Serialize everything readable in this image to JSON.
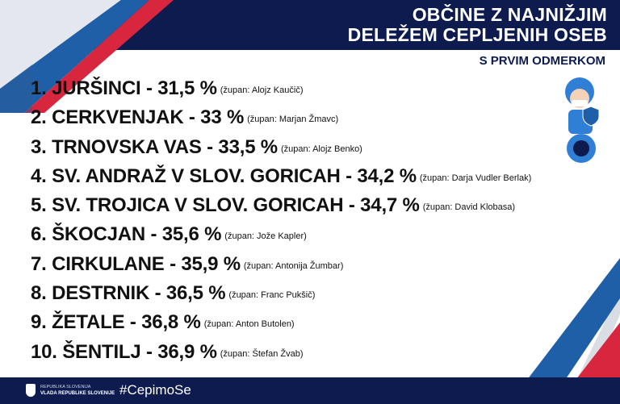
{
  "header": {
    "title_line1": "OBČINE Z NAJNIŽJIM",
    "title_line2": "DELEŽEM CEPLJENIH OSEB",
    "subtitle": "S PRVIM ODMERKOM"
  },
  "items": [
    {
      "main": "1. JURŠINCI - 31,5 %",
      "mayor": "(župan: Alojz Kaučič)"
    },
    {
      "main": "2. CERKVENJAK - 33 %",
      "mayor": "(župan: Marjan Žmavc)"
    },
    {
      "main": "3. TRNOVSKA VAS - 33,5 %",
      "mayor": "(župan: Alojz Benko)"
    },
    {
      "main": "4. SV. ANDRAŽ V SLOV. GORICAH - 34,2 %",
      "mayor": "(župan: Darja Vudler Berlak)"
    },
    {
      "main": "5. SV. TROJICA V SLOV. GORICAH - 34,7 %",
      "mayor": "(župan: David Klobasa)"
    },
    {
      "main": "6. ŠKOCJAN - 35,6 %",
      "mayor": "(župan: Jože Kapler)"
    },
    {
      "main": "7. CIRKULANE - 35,9 %",
      "mayor": "(župan:  Antonija Žumbar)"
    },
    {
      "main": "8. DESTRNIK - 36,5 %",
      "mayor": "(župan: Franc Pukšič)"
    },
    {
      "main": "9. ŽETALE - 36,8 %",
      "mayor": "(župan: Anton Butolen)"
    },
    {
      "main": "10. ŠENTILJ - 36,9 %",
      "mayor": "(župan: Štefan Žvab)"
    }
  ],
  "footer": {
    "gov_line1": "REPUBLIKA SLOVENIJA",
    "gov_line2": "VLADA REPUBLIKE SLOVENIJE",
    "hashtag": "#CepimoSe"
  },
  "colors": {
    "navy": "#0d1b4f",
    "blue": "#1f5fa8",
    "red": "#d7263d"
  }
}
